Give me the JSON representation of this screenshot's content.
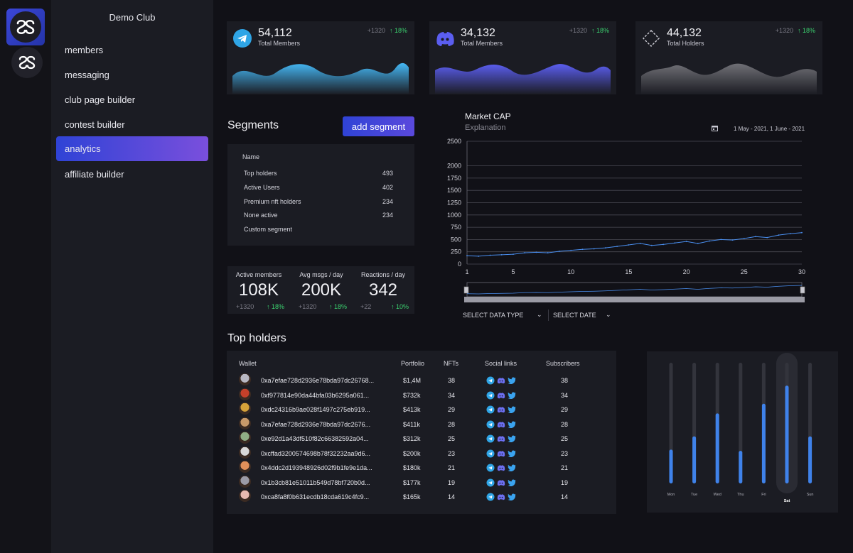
{
  "sidebar": {
    "club_name": "Demo Club",
    "items": [
      {
        "label": "members",
        "active": false
      },
      {
        "label": "messaging",
        "active": false
      },
      {
        "label": "club page builder",
        "active": false
      },
      {
        "label": "contest builder",
        "active": false
      },
      {
        "label": "analytics",
        "active": true
      },
      {
        "label": "affiliate builder",
        "active": false
      }
    ]
  },
  "stats": [
    {
      "icon": "telegram-icon",
      "value": "54,112",
      "label": "Total Members",
      "delta": "+1320",
      "pct": "18%",
      "wave_color": "#45b8f5"
    },
    {
      "icon": "discord-icon",
      "value": "34,132",
      "label": "Total Members",
      "delta": "+1320",
      "pct": "18%",
      "wave_color": "#5b5ef0"
    },
    {
      "icon": "diamond-icon",
      "value": "44,132",
      "label": "Total Holders",
      "delta": "+1320",
      "pct": "18%",
      "wave_color": "#6e6e74"
    }
  ],
  "segments": {
    "title": "Segments",
    "add_label": "add segment",
    "header": "Name",
    "rows": [
      {
        "name": "Top holders",
        "count": "493"
      },
      {
        "name": "Active Users",
        "count": "402"
      },
      {
        "name": "Premium nft holders",
        "count": "234"
      },
      {
        "name": "None active",
        "count": "234"
      },
      {
        "name": "Custom segment",
        "count": ""
      }
    ]
  },
  "metrics": [
    {
      "label": "Active members",
      "value": "108K",
      "delta": "+1320",
      "pct": "18%"
    },
    {
      "label": "Avg msgs / day",
      "value": "200K",
      "delta": "+1320",
      "pct": "18%"
    },
    {
      "label": "Reactions / day",
      "value": "342",
      "delta": "+22",
      "pct": "10%"
    }
  ],
  "market_cap": {
    "title": "Market CAP",
    "subtitle": "Explanation",
    "date_range": "1 May - 2021, 1 June - 2021",
    "select_type": "SELECT DATA TYPE",
    "select_date": "SELECT DATE"
  },
  "chart_data": [
    {
      "type": "line",
      "title": "Market CAP",
      "xlabel": "",
      "ylabel": "",
      "xlim": [
        1,
        30
      ],
      "ylim": [
        0,
        2500
      ],
      "x_ticks": [
        1,
        5,
        10,
        15,
        20,
        25,
        30
      ],
      "y_ticks": [
        0,
        250,
        500,
        750,
        1000,
        1250,
        1500,
        1750,
        2000,
        2500
      ],
      "grid": true,
      "series": [
        {
          "values": [
            170,
            160,
            180,
            190,
            200,
            230,
            240,
            230,
            260,
            280,
            300,
            310,
            330,
            360,
            390,
            420,
            380,
            400,
            430,
            460,
            420,
            470,
            500,
            490,
            520,
            560,
            540,
            590,
            620,
            640
          ]
        }
      ]
    },
    {
      "type": "bar",
      "categories": [
        "Mon",
        "Tue",
        "Wed",
        "Thu",
        "Fri",
        "Sat",
        "Sun"
      ],
      "values": [
        28,
        39,
        58,
        27,
        66,
        81,
        39
      ],
      "ylim": [
        0,
        100
      ],
      "highlight": "Sat"
    }
  ],
  "top_holders": {
    "title": "Top holders",
    "columns": [
      "Wallet",
      "Portfolio",
      "NFTs",
      "Social links",
      "Subscribers"
    ],
    "rows": [
      {
        "wallet": "0xa7efae728d2936e78bda97dc26768...",
        "portfolio": "$1,4M",
        "nfts": "38",
        "subs": "38",
        "avatar_color": "#b7b7c2"
      },
      {
        "wallet": "0xf977814e90da44bfa03b6295a061...",
        "portfolio": "$732k",
        "nfts": "34",
        "subs": "34",
        "avatar_color": "#c4402a"
      },
      {
        "wallet": "0xdc24316b9ae028f1497c275eb919...",
        "portfolio": "$413k",
        "nfts": "29",
        "subs": "29",
        "avatar_color": "#d5a23a"
      },
      {
        "wallet": "0xa7efae728d2936e78bda97dc2676...",
        "portfolio": "$411k",
        "nfts": "28",
        "subs": "28",
        "avatar_color": "#c89a6a"
      },
      {
        "wallet": "0xe92d1a43df510f82c66382592a04...",
        "portfolio": "$312k",
        "nfts": "25",
        "subs": "25",
        "avatar_color": "#8fae86"
      },
      {
        "wallet": "0xcffad3200574698b78f32232aa9d6...",
        "portfolio": "$200k",
        "nfts": "23",
        "subs": "23",
        "avatar_color": "#d8d8d8"
      },
      {
        "wallet": "0x4ddc2d193948926d02f9b1fe9e1da...",
        "portfolio": "$180k",
        "nfts": "21",
        "subs": "21",
        "avatar_color": "#e0905a"
      },
      {
        "wallet": "0x1b3cb81e51011b549d78bf720b0d...",
        "portfolio": "$177k",
        "nfts": "19",
        "subs": "19",
        "avatar_color": "#9a9aa6"
      },
      {
        "wallet": "0xca8fa8f0b631ecdb18cda619c4fc9...",
        "portfolio": "$165k",
        "nfts": "14",
        "subs": "14",
        "avatar_color": "#e6b9b0"
      }
    ]
  }
}
